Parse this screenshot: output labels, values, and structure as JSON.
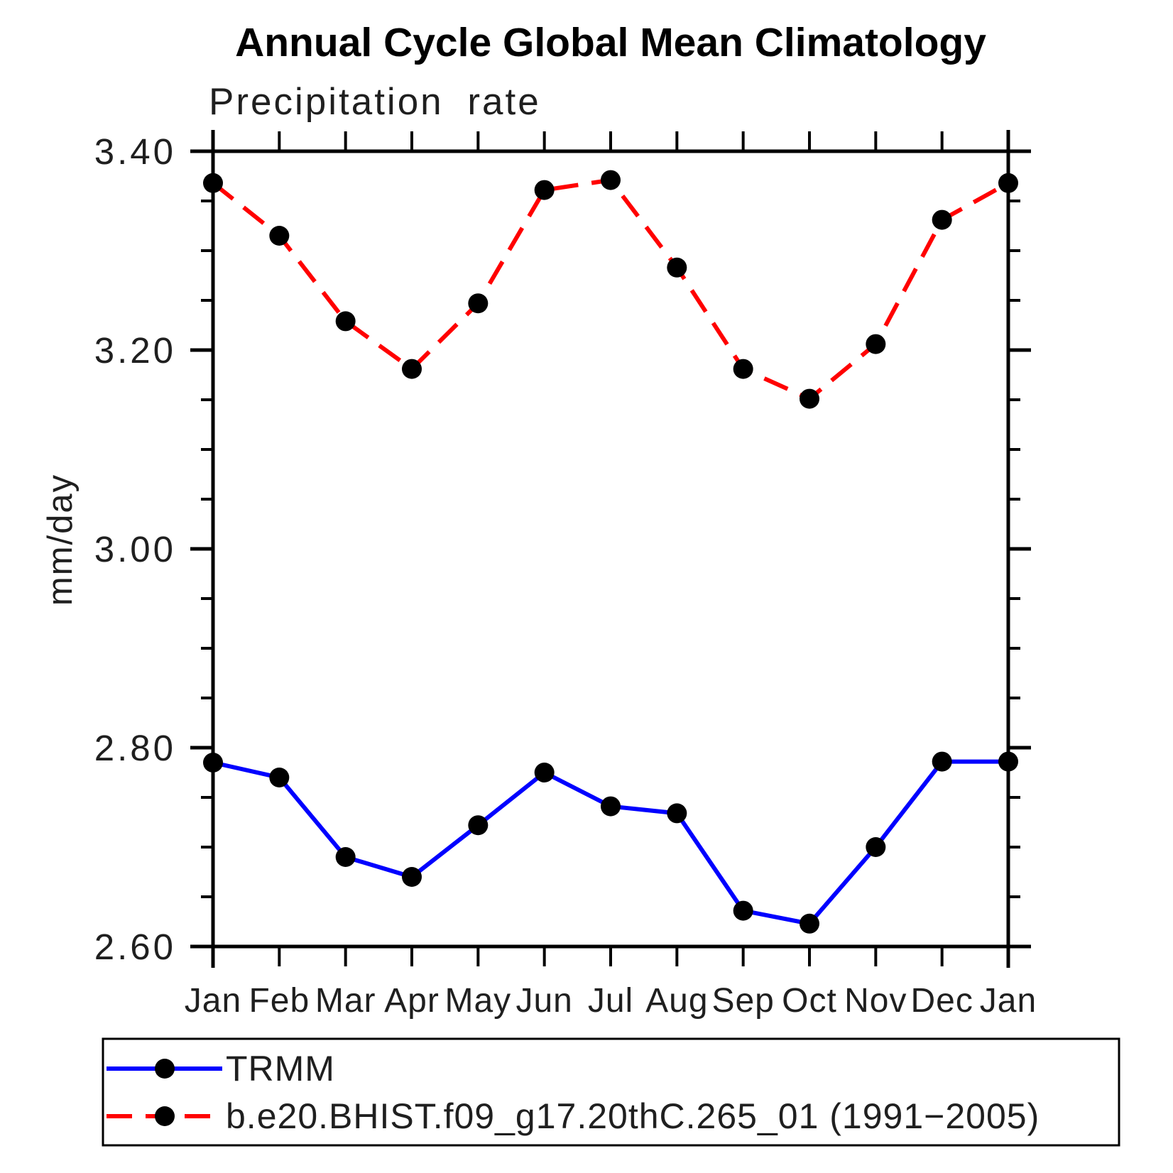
{
  "chart_data": {
    "type": "line",
    "title": "Annual Cycle Global Mean Climatology",
    "subtitle": "Precipitation rate",
    "ylabel": "mm/day",
    "categories": [
      "Jan",
      "Feb",
      "Mar",
      "Apr",
      "May",
      "Jun",
      "Jul",
      "Aug",
      "Sep",
      "Oct",
      "Nov",
      "Dec",
      "Jan"
    ],
    "ylim": [
      2.6,
      3.4
    ],
    "y_major_ticks": [
      2.6,
      2.8,
      3.0,
      3.2,
      3.4
    ],
    "y_major_tick_labels": [
      "2.60",
      "2.80",
      "3.00",
      "3.20",
      "3.40"
    ],
    "y_minor_step": 0.05,
    "grid": false,
    "legend_position": "bottom-left-box",
    "colors": {
      "trmm_line": "#0000ff",
      "model_line": "#ff0000",
      "marker": "#000000",
      "axis": "#000000"
    },
    "series": [
      {
        "name": "TRMM",
        "style": "solid",
        "color": "#0000ff",
        "marker": "filled-circle",
        "marker_color": "#000000",
        "values": [
          2.785,
          2.77,
          2.69,
          2.67,
          2.722,
          2.775,
          2.741,
          2.734,
          2.636,
          2.623,
          2.7,
          2.786,
          2.786
        ]
      },
      {
        "name": "b.e20.BHIST.f09_g17.20thC.265_01 (1991−2005)",
        "style": "dashed",
        "color": "#ff0000",
        "marker": "filled-circle",
        "marker_color": "#000000",
        "values": [
          3.368,
          3.315,
          3.229,
          3.181,
          3.247,
          3.361,
          3.371,
          3.283,
          3.181,
          3.151,
          3.206,
          3.331,
          3.368
        ]
      }
    ]
  }
}
